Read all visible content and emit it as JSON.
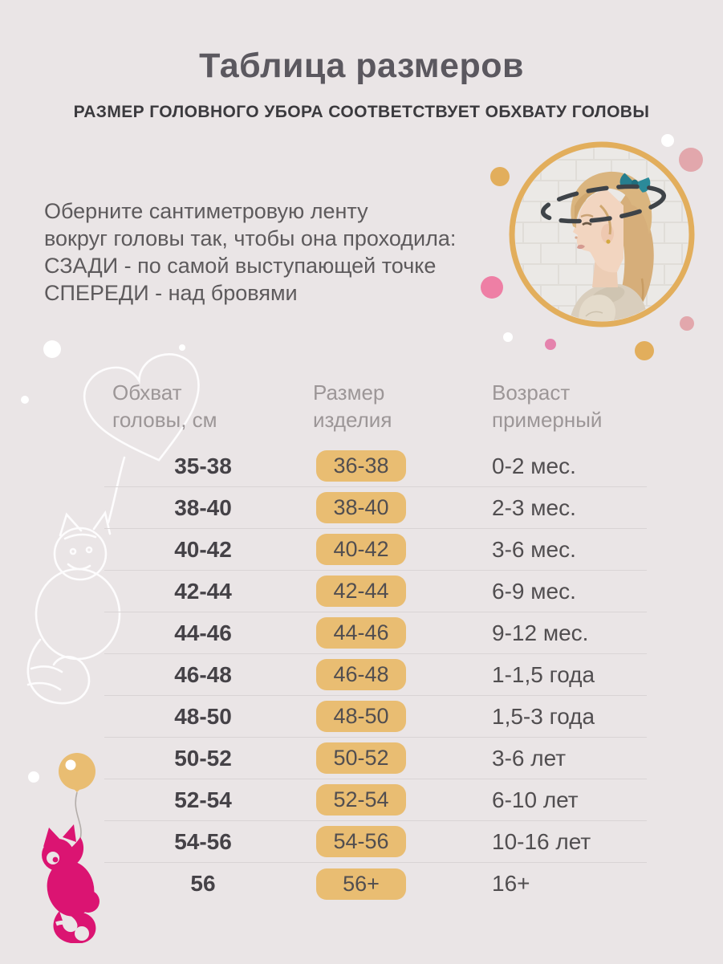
{
  "page": {
    "title": "Таблица размеров",
    "subtitle": "РАЗМЕР ГОЛОВНОГО УБОРА СООТВЕТСТВУЕТ ОБХВАТУ ГОЛОВЫ"
  },
  "instructions": {
    "line1": "Оберните сантиметровую ленту",
    "line2": "вокруг головы так, чтобы она проходила:",
    "line3": "СЗАДИ - по самой выступающей точке",
    "line4": "СПЕРЕДИ - над бровями"
  },
  "size_table": {
    "headers": [
      {
        "line1": "Обхват",
        "line2": "головы, см"
      },
      {
        "line1": "Размер",
        "line2": "изделия"
      },
      {
        "line1": "Возраст",
        "line2": "примерный"
      }
    ],
    "rows": [
      {
        "head_cm": "35-38",
        "size": "36-38",
        "age": "0-2 мес."
      },
      {
        "head_cm": "38-40",
        "size": "38-40",
        "age": "2-3 мес."
      },
      {
        "head_cm": "40-42",
        "size": "40-42",
        "age": "3-6 мес."
      },
      {
        "head_cm": "42-44",
        "size": "42-44",
        "age": "6-9 мес."
      },
      {
        "head_cm": "44-46",
        "size": "44-46",
        "age": "9-12 мес."
      },
      {
        "head_cm": "46-48",
        "size": "46-48",
        "age": "1-1,5 года"
      },
      {
        "head_cm": "48-50",
        "size": "48-50",
        "age": "1,5-3 года"
      },
      {
        "head_cm": "50-52",
        "size": "50-52",
        "age": "3-6 лет"
      },
      {
        "head_cm": "52-54",
        "size": "52-54",
        "age": "6-10 лет"
      },
      {
        "head_cm": "54-56",
        "size": "54-56",
        "age": "10-16 лет"
      },
      {
        "head_cm": "56",
        "size": "56+",
        "age": "16+"
      }
    ]
  },
  "decor": {
    "photo": "girl-head-measurement-photo",
    "table_mascot": "raccoon-holding-heart-outline",
    "bottom_mascot": "raccoon-hanging-from-balloon"
  },
  "colors": {
    "background": "#EAE5E6",
    "gold": "#E9BD72",
    "ring_gold": "#E2AE5C",
    "rose": "#E2A7AC",
    "pink_strong": "#EE7FA5",
    "pink_medium": "#E583AD",
    "magenta": "#DB1472",
    "text_title": "#5B585F",
    "text_subtitle": "#3B3A3E",
    "text_body": "#5D5A5C",
    "text_header": "#9C9697",
    "text_dark": "#454247",
    "text_cell": "#514E50",
    "separator": "#D9D4D5",
    "dash": "#3E4348",
    "string": "#B3ADAA"
  }
}
